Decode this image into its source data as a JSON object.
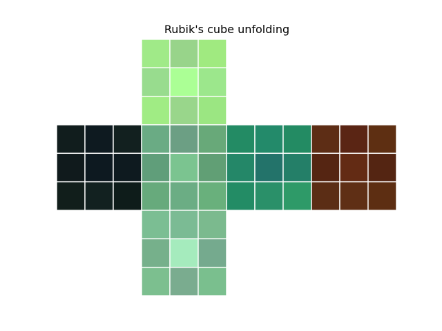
{
  "title": "Rubik's cube unfolding",
  "gap_color": "#ffffff",
  "faces": [
    {
      "name": "top",
      "grid_col": 1,
      "grid_row": 0,
      "colors": [
        [
          "#a0ea88",
          "#98d48a",
          "#a0ea80"
        ],
        [
          "#98dc8e",
          "#abff95",
          "#9ce78c"
        ],
        [
          "#a0ec84",
          "#99d68b",
          "#9be682"
        ]
      ]
    },
    {
      "name": "left",
      "grid_col": 0,
      "grid_row": 1,
      "colors": [
        [
          "#111d1d",
          "#0e1a20",
          "#12201f"
        ],
        [
          "#101a1c",
          "#0d1920",
          "#0e1a1f"
        ],
        [
          "#111e1b",
          "#122120",
          "#0e1c1a"
        ]
      ]
    },
    {
      "name": "front",
      "grid_col": 1,
      "grid_row": 1,
      "colors": [
        [
          "#6aab84",
          "#6c9f84",
          "#68a979"
        ],
        [
          "#609e7a",
          "#7bc490",
          "#619f75"
        ],
        [
          "#67aa7c",
          "#6bad84",
          "#69b07c"
        ]
      ]
    },
    {
      "name": "right",
      "grid_col": 2,
      "grid_row": 1,
      "colors": [
        [
          "#238b64",
          "#238a6a",
          "#238b63"
        ],
        [
          "#248768",
          "#23736a",
          "#247f68"
        ],
        [
          "#238c65",
          "#2a9069",
          "#2e9a68"
        ]
      ]
    },
    {
      "name": "back",
      "grid_col": 3,
      "grid_row": 1,
      "colors": [
        [
          "#5d2d15",
          "#5a2514",
          "#5e2f12"
        ],
        [
          "#552512",
          "#632b14",
          "#542512"
        ],
        [
          "#5b2d15",
          "#5f2f15",
          "#5d2e12"
        ]
      ]
    },
    {
      "name": "bottom",
      "grid_col": 1,
      "grid_row": 2,
      "colors": [
        [
          "#7bbe93",
          "#7bbb94",
          "#7bba8e"
        ],
        [
          "#76b08b",
          "#a5ebbd",
          "#75aa8e"
        ],
        [
          "#7cbf8f",
          "#7aac8f",
          "#7abf8e"
        ]
      ]
    }
  ]
}
